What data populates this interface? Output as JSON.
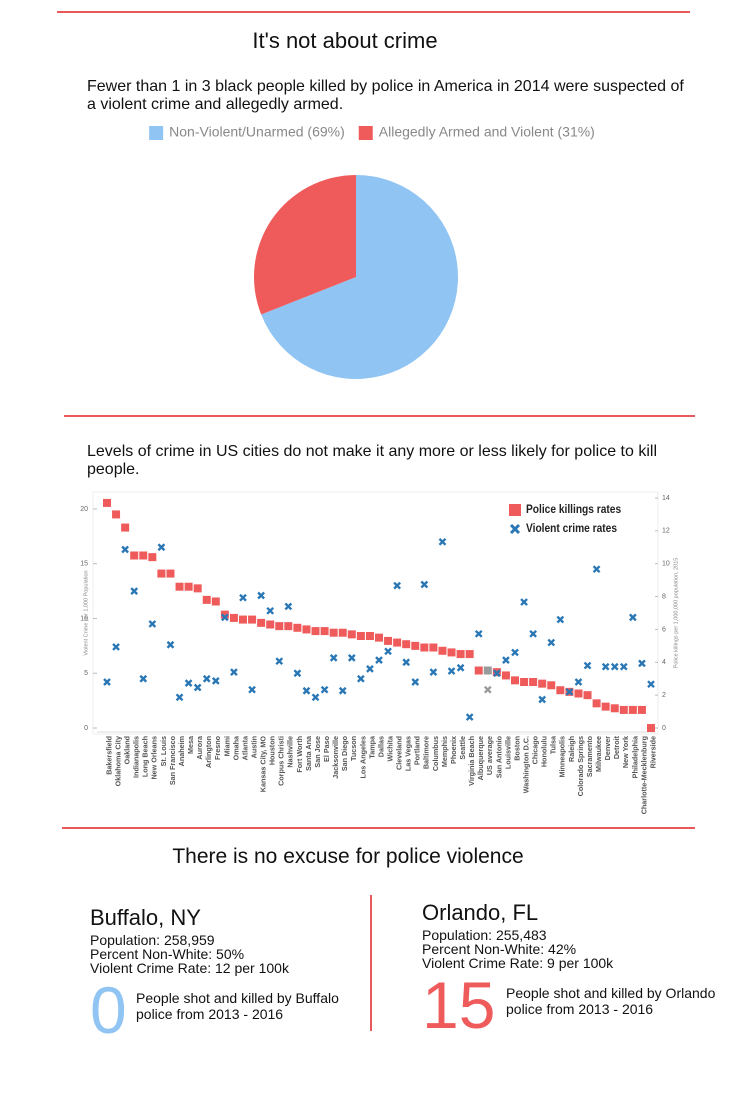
{
  "headings": [
    "It's not about crime",
    "There is no excuse for police violence"
  ],
  "chart_data": [
    {
      "type": "pie",
      "title": "Fewer than 1 in 3 black people killed by police in America in 2014 were suspected of a violent crime and allegedly armed.",
      "categories": [
        "Non-Violent/Unarmed (69%)",
        "Allegedly Armed and Violent (31%)"
      ],
      "values": [
        69,
        31
      ],
      "colors": [
        "#90c4f3",
        "#ef5b5b"
      ],
      "legend": "top"
    },
    {
      "type": "scatter",
      "title": "Levels of crime in US cities do not make it any more or less likely for police to kill people.",
      "ylabel": "Violent Crime per 1,000 Population",
      "y2label": "Police killings per 1,000,000 population, 2015",
      "categories": [
        "Bakersfield",
        "Oklahoma City",
        "Oakland",
        "Indianapolis",
        "Long Beach",
        "New Orleans",
        "St. Louis",
        "San Francisco",
        "Anaheim",
        "Mesa",
        "Aurora",
        "Arlington",
        "Fresno",
        "Miami",
        "Omaha",
        "Atlanta",
        "Austin",
        "Kansas City, MO",
        "Houston",
        "Corpus Christi",
        "Nashville",
        "Fort Worth",
        "Santa Ana",
        "San Jose",
        "El Paso",
        "Jacksonville",
        "San Diego",
        "Tucson",
        "Los Angeles",
        "Tampa",
        "Dallas",
        "Wichita",
        "Cleveland",
        "Las Vegas",
        "Portland",
        "Baltimore",
        "Columbus",
        "Memphis",
        "Phoenix",
        "Seattle",
        "Virginia Beach",
        "Albuquerque",
        "US average",
        "San Antonio",
        "Louisville",
        "Boston",
        "Washington D.C.",
        "Chicago",
        "Honolulu",
        "Tulsa",
        "Minneapolis",
        "Raleigh",
        "Colorado Springs",
        "Sacramento",
        "Milwaukee",
        "Denver",
        "Detroit",
        "New York",
        "Philadelphia",
        "Charlotte-Mecklenburg",
        "Riverside"
      ],
      "series": [
        {
          "name": "Police killings rates",
          "color": "#ef5b5b",
          "marker": "square",
          "axis": "y2",
          "values": [
            13.7,
            13.0,
            12.2,
            10.5,
            10.5,
            10.4,
            9.4,
            9.4,
            8.6,
            8.6,
            8.5,
            7.8,
            7.7,
            6.9,
            6.7,
            6.6,
            6.6,
            6.4,
            6.3,
            6.2,
            6.2,
            6.1,
            6.0,
            5.9,
            5.9,
            5.8,
            5.8,
            5.7,
            5.6,
            5.6,
            5.5,
            5.3,
            5.2,
            5.1,
            5.0,
            4.9,
            4.9,
            4.7,
            4.6,
            4.5,
            4.5,
            3.5,
            3.5,
            3.4,
            3.2,
            2.9,
            2.8,
            2.8,
            2.7,
            2.6,
            2.3,
            2.2,
            2.1,
            2.0,
            1.5,
            1.3,
            1.2,
            1.1,
            1.1,
            1.1,
            0
          ]
        },
        {
          "name": "Violent crime rates",
          "color": "#2a77b5",
          "marker": "x",
          "values": [
            4.2,
            7.4,
            16.3,
            12.5,
            4.5,
            9.5,
            16.5,
            7.6,
            2.8,
            4.1,
            3.7,
            4.5,
            4.3,
            10.1,
            5.1,
            11.9,
            3.5,
            12.1,
            10.7,
            6.1,
            11.1,
            5.0,
            3.4,
            2.8,
            3.5,
            6.4,
            3.4,
            6.4,
            4.5,
            5.4,
            6.2,
            7.0,
            13.0,
            6.0,
            4.2,
            13.1,
            5.1,
            17.0,
            5.2,
            5.5,
            1.0,
            8.6,
            3.5,
            5.0,
            6.2,
            6.9,
            11.5,
            8.6,
            2.6,
            7.8,
            9.9,
            3.3,
            4.2,
            5.7,
            14.5,
            5.6,
            5.6,
            5.6,
            10.1,
            5.9,
            4.0
          ]
        }
      ],
      "highlight_category": "US average",
      "highlight_color": "#9a9a9a",
      "ylim": [
        0,
        21
      ],
      "yticks": [
        0,
        5,
        10,
        15,
        20
      ],
      "y2lim": [
        0,
        14
      ],
      "y2ticks": [
        0,
        2,
        4,
        6,
        8,
        10,
        12,
        14
      ],
      "grid": false,
      "legend": "top-right"
    }
  ],
  "cities": [
    {
      "name": "Buffalo, NY",
      "population": "Population: 258,959",
      "non_white": "Percent Non-White: 50%",
      "crime": "Violent Crime Rate: 12 per 100k",
      "killed": 0,
      "color": "#90c4f3",
      "caption": "People shot and killed by Buffalo police from 2013 - 2016"
    },
    {
      "name": "Orlando, FL",
      "population": "Population: 255,483",
      "non_white": "Percent Non-White: 42%",
      "crime": "Violent Crime Rate: 9 per 100k",
      "killed": 15,
      "color": "#ef5b5b",
      "caption": "People shot and killed by Orlando police from 2013 - 2016"
    }
  ]
}
